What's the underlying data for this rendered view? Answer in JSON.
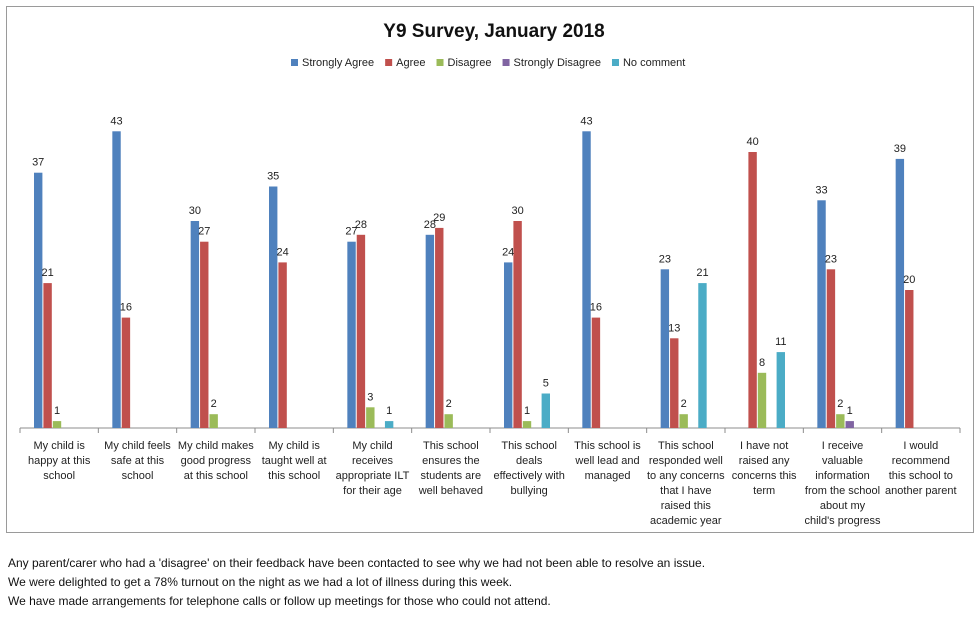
{
  "chart_data": {
    "type": "bar",
    "title": "Y9 Survey, January 2018",
    "legend_position": "top",
    "grid": false,
    "ylim": [
      0,
      45
    ],
    "categories": [
      [
        "My child is",
        "happy at this",
        "school"
      ],
      [
        "My child feels",
        "safe at this",
        "school"
      ],
      [
        "My child makes",
        "good progress",
        "at this school"
      ],
      [
        "My child is",
        "taught well at",
        "this school"
      ],
      [
        "My child",
        "receives",
        "appropriate ILT",
        "for their age"
      ],
      [
        "This school",
        "ensures the",
        "students are",
        "well behaved"
      ],
      [
        "This school",
        "deals",
        "effectively with",
        "bullying"
      ],
      [
        "This school is",
        "well lead and",
        "managed"
      ],
      [
        "This school",
        "responded well",
        "to any concerns",
        "that I have",
        "raised this",
        "academic year"
      ],
      [
        "I have not",
        "raised any",
        "concerns this",
        "term"
      ],
      [
        "I receive",
        "valuable",
        "information",
        "from the school",
        "about my",
        "child's progress"
      ],
      [
        "I would",
        "recommend",
        "this school to",
        "another parent"
      ]
    ],
    "series": [
      {
        "name": "Strongly Agree",
        "color": "#4f81bd",
        "values": [
          37,
          43,
          30,
          35,
          27,
          28,
          24,
          43,
          23,
          null,
          33,
          39
        ]
      },
      {
        "name": "Agree",
        "color": "#c0504d",
        "values": [
          21,
          16,
          27,
          24,
          28,
          29,
          30,
          16,
          13,
          40,
          23,
          20
        ]
      },
      {
        "name": "Disagree",
        "color": "#9bbb59",
        "values": [
          1,
          null,
          2,
          null,
          3,
          2,
          1,
          null,
          2,
          8,
          2,
          null
        ]
      },
      {
        "name": "Strongly Disagree",
        "color": "#8064a2",
        "values": [
          null,
          null,
          null,
          null,
          null,
          null,
          null,
          null,
          null,
          null,
          1,
          null
        ]
      },
      {
        "name": "No comment",
        "color": "#4bacc6",
        "values": [
          null,
          null,
          null,
          null,
          1,
          null,
          5,
          null,
          21,
          11,
          null,
          null
        ]
      }
    ]
  },
  "notes": [
    "Any parent/carer who had a 'disagree' on their feedback have been contacted to see why we had not been able to resolve an issue.",
    "We were delighted to get a 78% turnout on the night as we had a lot of illness during this week.",
    "We have made arrangements for telephone calls or follow up meetings for those who could not attend."
  ]
}
